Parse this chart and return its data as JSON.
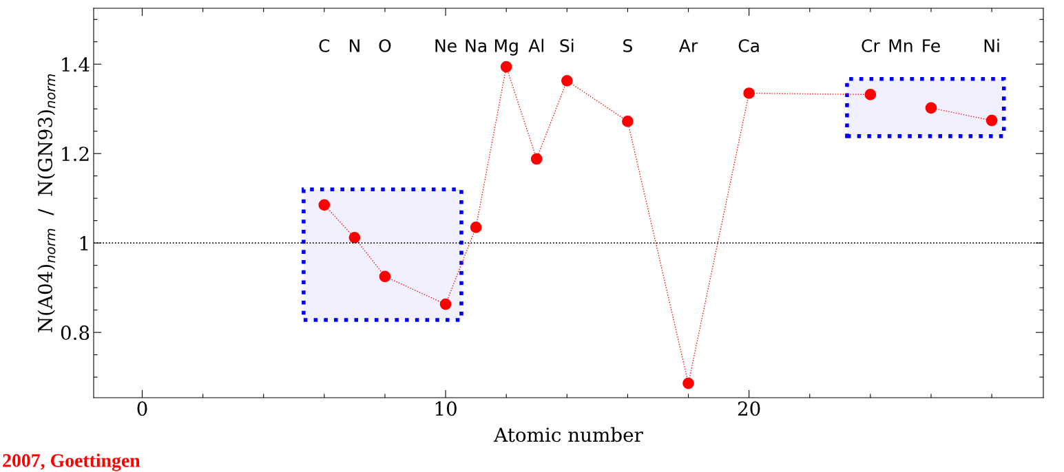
{
  "chart_data": {
    "type": "line",
    "xlabel": "Atomic number",
    "ylabel": "N(A04)$_{norm}$  /  N(GN93)$_{norm}$",
    "x": [
      6,
      7,
      8,
      10,
      11,
      12,
      13,
      14,
      16,
      18,
      20,
      24,
      25,
      26,
      28
    ],
    "series": [
      {
        "color": "#ff0000",
        "line_style": "dotted",
        "marker": "circle",
        "values": [
          1.085,
          1.012,
          0.925,
          0.863,
          1.035,
          1.394,
          1.188,
          1.363,
          1.272,
          0.686,
          1.335,
          1.332,
          null,
          1.302,
          1.274
        ]
      }
    ],
    "xlim": [
      -1.6,
      29.7
    ],
    "ylim": [
      0.654,
      1.525
    ],
    "xticks": [
      0,
      {
        "value": 2,
        "label": null
      },
      {
        "value": 4,
        "label": null
      },
      {
        "value": 6,
        "label": null
      },
      {
        "value": 8,
        "label": null
      },
      10,
      {
        "value": 12,
        "label": null
      },
      {
        "value": 14,
        "label": null
      },
      {
        "value": 16,
        "label": null
      },
      {
        "value": 18,
        "label": null
      },
      20,
      {
        "value": 22,
        "label": null
      },
      {
        "value": 24,
        "label": null
      },
      {
        "value": 26,
        "label": null
      },
      {
        "value": 28,
        "label": null
      }
    ],
    "yticks": [
      {
        "value": 0.7,
        "label": null
      },
      {
        "value": 0.75,
        "label": null
      },
      0.8,
      {
        "value": 0.85,
        "label": null
      },
      {
        "value": 0.9,
        "label": null
      },
      {
        "value": 0.95,
        "label": null
      },
      1,
      {
        "value": 1.05,
        "label": null
      },
      {
        "value": 1.1,
        "label": null
      },
      {
        "value": 1.15,
        "label": null
      },
      1.2,
      {
        "value": 1.25,
        "label": null
      },
      {
        "value": 1.3,
        "label": null
      },
      {
        "value": 1.35,
        "label": null
      },
      1.4,
      {
        "value": 1.45,
        "label": null
      },
      {
        "value": 1.5,
        "label": null
      }
    ],
    "ref_lines": [
      {
        "axis": "y",
        "value": 1,
        "color": "#000000",
        "line_style": "dotted"
      }
    ],
    "bands": [
      {
        "axis": "x",
        "from": 5.32,
        "to": 10.52,
        "color": "#0000ff"
      },
      {
        "axis": "x",
        "from": 23.23,
        "to": 28.4,
        "color": "#0000ff"
      }
    ],
    "annotations": [
      "C",
      "N",
      "O",
      "Ne",
      "Na",
      "Mg",
      "Al",
      "Si",
      "S",
      "Ar",
      "Ca",
      "Cr",
      "Mn",
      "Fe",
      "Ni",
      "2007, Goettingen"
    ],
    "grid": false
  }
}
